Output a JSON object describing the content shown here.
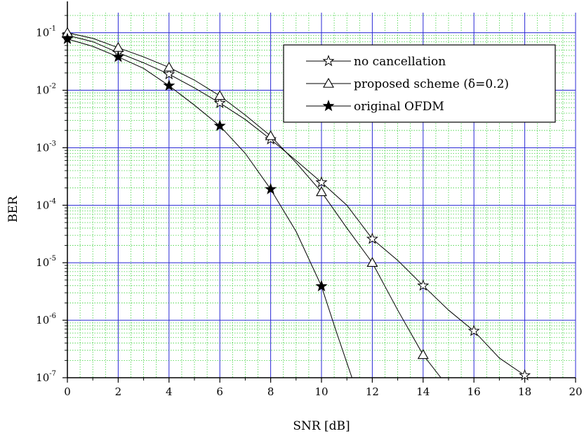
{
  "chart_data": {
    "type": "line",
    "title": "",
    "xlabel": "SNR [dB]",
    "ylabel": "BER",
    "xlim": [
      0,
      20
    ],
    "ylim": [
      1e-07,
      0.1
    ],
    "y_scale": "log",
    "grid": true,
    "legend_position": "top-right",
    "x_ticks": [
      0,
      2,
      4,
      6,
      8,
      10,
      12,
      14,
      16,
      18,
      20
    ],
    "y_ticks": [
      {
        "value": 0.1,
        "mantissa": "10",
        "exponent": "-1"
      },
      {
        "value": 0.01,
        "mantissa": "10",
        "exponent": "-2"
      },
      {
        "value": 0.001,
        "mantissa": "10",
        "exponent": "-3"
      },
      {
        "value": 0.0001,
        "mantissa": "10",
        "exponent": "-4"
      },
      {
        "value": 1e-05,
        "mantissa": "10",
        "exponent": "-5"
      },
      {
        "value": 1e-06,
        "mantissa": "10",
        "exponent": "-6"
      },
      {
        "value": 1e-07,
        "mantissa": "10",
        "exponent": "-7"
      }
    ],
    "series": [
      {
        "name": "no cancellation",
        "marker": "star-open",
        "x": [
          0,
          1,
          2,
          3,
          4,
          5,
          6,
          7,
          8,
          9,
          10,
          11,
          12,
          13,
          14,
          15,
          16,
          17,
          18
        ],
        "y": [
          0.09,
          0.07,
          0.045,
          0.03,
          0.019,
          0.011,
          0.006,
          0.0031,
          0.0014,
          0.0006,
          0.00025,
          0.0001,
          2.6e-05,
          1.1e-05,
          4e-06,
          1.5e-06,
          6.5e-07,
          2.2e-07,
          1.1e-07
        ],
        "marker_x": [
          0,
          2,
          4,
          6,
          8,
          10,
          12,
          14,
          16,
          18
        ],
        "marker_y": [
          0.09,
          0.045,
          0.019,
          0.006,
          0.0014,
          0.00025,
          2.6e-05,
          4e-06,
          6.5e-07,
          1.1e-07
        ]
      },
      {
        "name": "proposed scheme (δ=0.2)",
        "marker": "triangle-open",
        "x": [
          0,
          1,
          2,
          3,
          4,
          5,
          6,
          7,
          8,
          9,
          10,
          11,
          12,
          13,
          14,
          14.7
        ],
        "y": [
          0.1,
          0.08,
          0.055,
          0.038,
          0.025,
          0.015,
          0.008,
          0.0037,
          0.0016,
          0.00055,
          0.00017,
          4e-05,
          1e-05,
          1.5e-06,
          2.5e-07,
          1e-07
        ],
        "marker_x": [
          0,
          2,
          4,
          6,
          8,
          10,
          12,
          14
        ],
        "marker_y": [
          0.1,
          0.055,
          0.025,
          0.008,
          0.0016,
          0.00017,
          1e-05,
          2.5e-07
        ]
      },
      {
        "name": "original OFDM",
        "marker": "star-filled",
        "x": [
          0,
          1,
          2,
          3,
          4,
          5,
          6,
          7,
          8,
          9,
          10,
          10.6,
          11.2
        ],
        "y": [
          0.078,
          0.058,
          0.038,
          0.024,
          0.012,
          0.0055,
          0.0024,
          0.0008,
          0.00019,
          3.5e-05,
          3.9e-06,
          6e-07,
          1e-07
        ],
        "marker_x": [
          0,
          2,
          4,
          6,
          8,
          10
        ],
        "marker_y": [
          0.078,
          0.038,
          0.012,
          0.0024,
          0.00019,
          3.9e-06
        ]
      }
    ],
    "legend": [
      {
        "label": "no cancellation",
        "marker": "star-open"
      },
      {
        "label": "proposed scheme (δ=0.2)",
        "marker": "triangle-open"
      },
      {
        "label": "original OFDM",
        "marker": "star-filled"
      }
    ],
    "colors": {
      "major_grid": "#2a2ad6",
      "minor_grid": "#3fd23f",
      "lines": "#000000"
    }
  }
}
